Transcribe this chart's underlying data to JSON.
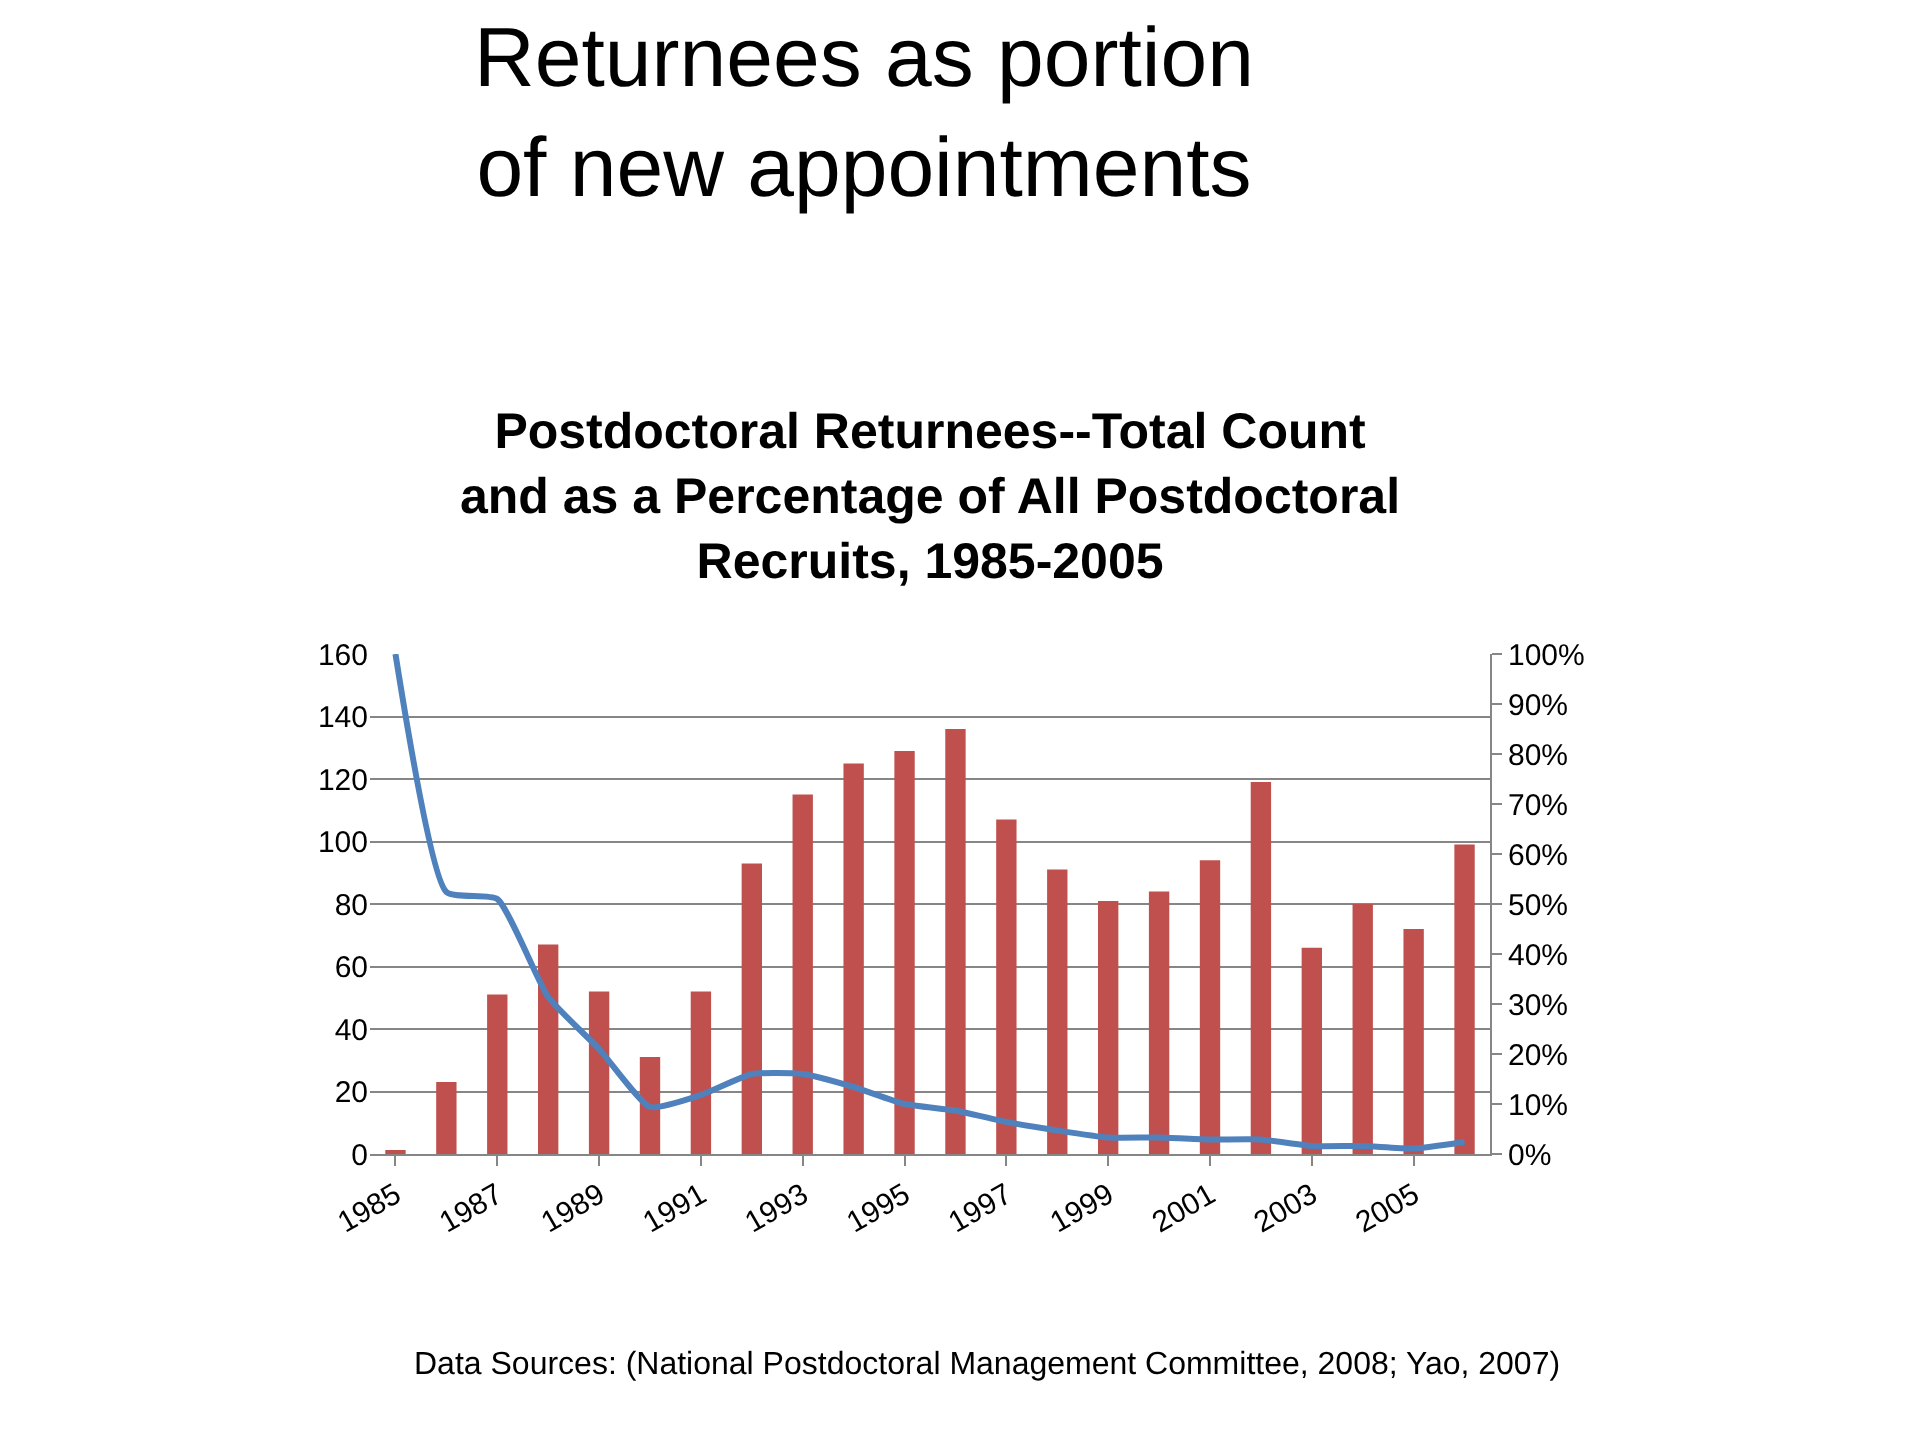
{
  "chart_data": {
    "type": "bar",
    "title": "Returnees as portion\nof new appointments",
    "subtitle": "Postdoctoral Returnees--Total Count\nand as a Percentage of All Postdoctoral\nRecruits, 1985-2005",
    "annotations": [
      "Data Sources: (National Postdoctoral Management Committee, 2008; Yao, 2007)"
    ],
    "categories": [
      "1985",
      null,
      "1987",
      null,
      "1989",
      null,
      "1991",
      null,
      "1993",
      null,
      "1995",
      null,
      "1997",
      null,
      "1999",
      null,
      "2001",
      null,
      "2003",
      null,
      "2005",
      null
    ],
    "series": [
      {
        "color": "#c0504d",
        "values": [
          1,
          23,
          51,
          67,
          52,
          31,
          52,
          93,
          115,
          125,
          129,
          136,
          107,
          91,
          81,
          84,
          94,
          119,
          66,
          80,
          72,
          99
        ]
      },
      {
        "type": "line",
        "axis": "y2",
        "color": "#4f81bd",
        "values": [
          100,
          52.4,
          51,
          31.4,
          21,
          9.4,
          11.8,
          16,
          16,
          13.4,
          10,
          8.7,
          6.4,
          4.7,
          3.3,
          3.3,
          2.9,
          2.9,
          1.6,
          1.6,
          1.1,
          2.4
        ]
      }
    ],
    "ylim": [
      0,
      160
    ],
    "yticks": [
      0,
      20,
      40,
      60,
      80,
      100,
      120,
      140,
      160
    ],
    "y2lim": [
      0,
      100
    ],
    "y2ticks": [
      {
        "value": 0,
        "label": "0%"
      },
      {
        "value": 10,
        "label": "10%"
      },
      {
        "value": 20,
        "label": "20%"
      },
      {
        "value": 30,
        "label": "30%"
      },
      {
        "value": 40,
        "label": "40%"
      },
      {
        "value": 50,
        "label": "50%"
      },
      {
        "value": 60,
        "label": "60%"
      },
      {
        "value": 70,
        "label": "70%"
      },
      {
        "value": 80,
        "label": "80%"
      },
      {
        "value": 90,
        "label": "90%"
      },
      {
        "value": 100,
        "label": "100%"
      }
    ],
    "grid": "y",
    "marker": "none",
    "line_style": "solid"
  }
}
